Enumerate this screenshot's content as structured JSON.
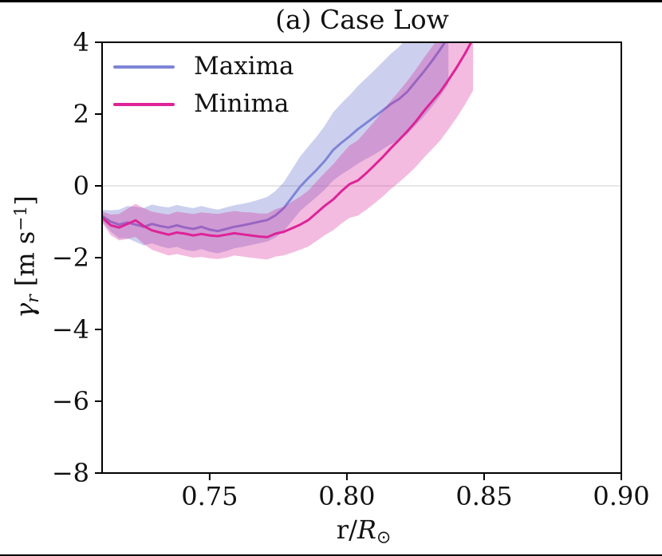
{
  "figure": {
    "title": "(a) Case Low",
    "border_color": "#000000",
    "background": "#ffffff"
  },
  "axes": {
    "xlabel": {
      "pre": "r/",
      "symbol": "R",
      "sub": "⊙",
      "plain": "r/R⊙"
    },
    "ylabel": {
      "sym": "γ",
      "sub": "r",
      "unit_pre": " [m s",
      "sup": "−1",
      "unit_post": "]",
      "plain": "γr [m s−1]"
    },
    "spine_color": "#000000",
    "zero_line_color": "#dedede"
  },
  "legend": {
    "position": "upper left",
    "entries": [
      {
        "label": "Maxima",
        "color": "#7e85d6"
      },
      {
        "label": "Minima",
        "color": "#de2398"
      }
    ]
  },
  "chart_data": {
    "type": "line",
    "title": "(a) Case Low",
    "xlabel": "r/R⊙",
    "ylabel": "γr [m s−1]",
    "xlim": [
      0.7108,
      0.9
    ],
    "ylim": [
      -8,
      4
    ],
    "legend_position": "upper left",
    "grid": "horizontal line at y=0 only",
    "x_ticks": [
      {
        "label": "0.75",
        "value": 0.75
      },
      {
        "label": "0.80",
        "value": 0.8
      },
      {
        "label": "0.85",
        "value": 0.85
      },
      {
        "label": "0.90",
        "value": 0.9
      }
    ],
    "y_ticks": [
      {
        "label": "4",
        "value": 4
      },
      {
        "label": "2",
        "value": 2
      },
      {
        "label": "0",
        "value": 0
      },
      {
        "label": "−2",
        "value": -2
      },
      {
        "label": "−4",
        "value": -4
      },
      {
        "label": "−6",
        "value": -6
      },
      {
        "label": "−8",
        "value": -8
      }
    ],
    "series": [
      {
        "name": "Maxima",
        "line_color": "#7e85d6",
        "band_fill": "rgba(110,119,205,0.35)",
        "r": [
          0.711,
          0.714,
          0.717,
          0.72,
          0.723,
          0.726,
          0.729,
          0.732,
          0.735,
          0.738,
          0.741,
          0.744,
          0.747,
          0.75,
          0.753,
          0.756,
          0.759,
          0.762,
          0.765,
          0.768,
          0.771,
          0.774,
          0.777,
          0.78,
          0.783,
          0.786,
          0.789,
          0.792,
          0.795,
          0.798,
          0.801,
          0.804,
          0.807,
          0.81,
          0.813,
          0.816,
          0.819,
          0.822,
          0.825,
          0.828,
          0.831,
          0.834,
          0.837
        ],
        "center": [
          -0.85,
          -1.0,
          -1.08,
          -1.02,
          -1.08,
          -1.14,
          -1.06,
          -1.12,
          -1.16,
          -1.1,
          -1.16,
          -1.2,
          -1.14,
          -1.22,
          -1.26,
          -1.2,
          -1.14,
          -1.1,
          -1.05,
          -1.0,
          -0.95,
          -0.82,
          -0.62,
          -0.32,
          -0.02,
          0.22,
          0.45,
          0.7,
          1.0,
          1.2,
          1.38,
          1.58,
          1.75,
          1.92,
          2.1,
          2.28,
          2.42,
          2.62,
          2.9,
          3.18,
          3.48,
          3.8,
          4.15
        ],
        "upper": [
          -0.67,
          -0.68,
          -0.66,
          -0.56,
          -0.58,
          -0.62,
          -0.52,
          -0.57,
          -0.6,
          -0.53,
          -0.58,
          -0.62,
          -0.56,
          -0.62,
          -0.66,
          -0.6,
          -0.54,
          -0.5,
          -0.45,
          -0.38,
          -0.31,
          -0.14,
          0.1,
          0.46,
          0.82,
          1.1,
          1.37,
          1.68,
          2.05,
          2.3,
          2.53,
          2.78,
          3.0,
          3.22,
          3.45,
          3.68,
          3.87,
          4.12,
          4.45,
          4.78,
          5.08,
          5.4,
          5.75
        ],
        "lower": [
          -1.0,
          -1.28,
          -1.46,
          -1.46,
          -1.56,
          -1.66,
          -1.6,
          -1.68,
          -1.74,
          -1.7,
          -1.78,
          -1.82,
          -1.76,
          -1.84,
          -1.88,
          -1.82,
          -1.74,
          -1.7,
          -1.65,
          -1.6,
          -1.55,
          -1.44,
          -1.26,
          -0.98,
          -0.7,
          -0.5,
          -0.31,
          -0.1,
          0.15,
          0.32,
          0.46,
          0.62,
          0.75,
          0.87,
          1.02,
          1.16,
          1.27,
          1.44,
          1.68,
          1.93,
          2.2,
          2.5,
          2.83
        ]
      },
      {
        "name": "Minima",
        "line_color": "#de2398",
        "band_fill": "rgba(214,31,150,0.30)",
        "r": [
          0.711,
          0.714,
          0.717,
          0.72,
          0.723,
          0.726,
          0.729,
          0.732,
          0.735,
          0.738,
          0.741,
          0.744,
          0.747,
          0.75,
          0.753,
          0.756,
          0.759,
          0.762,
          0.765,
          0.768,
          0.771,
          0.774,
          0.777,
          0.78,
          0.783,
          0.786,
          0.789,
          0.792,
          0.795,
          0.798,
          0.801,
          0.804,
          0.807,
          0.81,
          0.813,
          0.816,
          0.819,
          0.822,
          0.825,
          0.828,
          0.831,
          0.834,
          0.837,
          0.84,
          0.843,
          0.846
        ],
        "center": [
          -0.9,
          -1.1,
          -1.16,
          -1.06,
          -0.96,
          -1.12,
          -1.24,
          -1.3,
          -1.36,
          -1.3,
          -1.33,
          -1.38,
          -1.34,
          -1.38,
          -1.4,
          -1.36,
          -1.32,
          -1.35,
          -1.38,
          -1.41,
          -1.43,
          -1.33,
          -1.28,
          -1.18,
          -1.08,
          -0.95,
          -0.75,
          -0.55,
          -0.38,
          -0.15,
          0.05,
          0.15,
          0.35,
          0.57,
          0.8,
          1.05,
          1.28,
          1.52,
          1.78,
          2.08,
          2.35,
          2.62,
          2.95,
          3.3,
          3.68,
          4.1
        ],
        "upper": [
          -0.72,
          -0.8,
          -0.78,
          -0.64,
          -0.5,
          -0.62,
          -0.72,
          -0.76,
          -0.8,
          -0.72,
          -0.75,
          -0.78,
          -0.74,
          -0.76,
          -0.78,
          -0.74,
          -0.7,
          -0.73,
          -0.74,
          -0.77,
          -0.77,
          -0.65,
          -0.58,
          -0.44,
          -0.3,
          -0.13,
          0.13,
          0.37,
          0.6,
          0.87,
          1.13,
          1.27,
          1.53,
          1.79,
          2.08,
          2.37,
          2.64,
          2.92,
          3.23,
          3.56,
          3.87,
          4.17,
          4.53,
          4.9,
          5.3,
          5.74
        ],
        "lower": [
          -1.05,
          -1.38,
          -1.52,
          -1.48,
          -1.42,
          -1.62,
          -1.78,
          -1.86,
          -1.94,
          -1.9,
          -1.95,
          -2.0,
          -1.98,
          -2.02,
          -2.04,
          -2.0,
          -1.94,
          -1.97,
          -2.0,
          -2.03,
          -2.05,
          -1.97,
          -1.94,
          -1.86,
          -1.78,
          -1.69,
          -1.53,
          -1.37,
          -1.24,
          -1.05,
          -0.89,
          -0.83,
          -0.67,
          -0.49,
          -0.3,
          -0.09,
          0.1,
          0.3,
          0.52,
          0.78,
          1.02,
          1.26,
          1.57,
          1.9,
          2.26,
          2.66
        ]
      }
    ]
  }
}
